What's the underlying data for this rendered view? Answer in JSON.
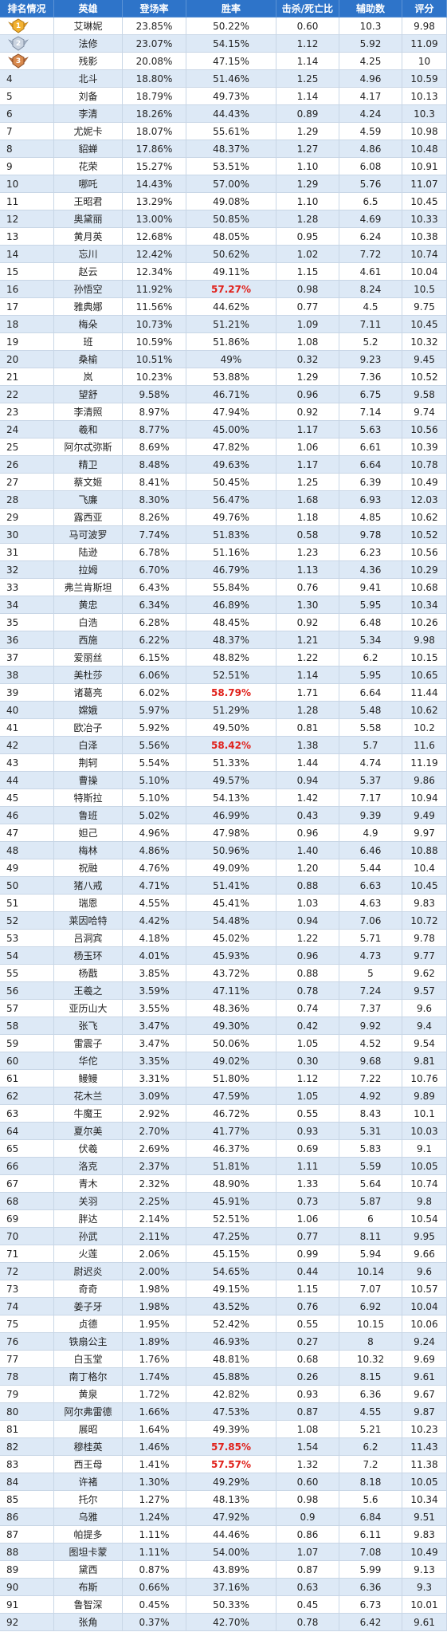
{
  "header": {
    "rank": "排名情况",
    "hero": "英雄",
    "appearance": "登场率",
    "winrate": "胜率",
    "kda": "击杀/死亡比",
    "assists": "辅助数",
    "score": "评分"
  },
  "colors": {
    "header_bg": "#2e74c9",
    "stripe": "#dde9f6",
    "highlight_red": "#e0211b",
    "gold_medal": "#f2b233",
    "silver_medal": "#a9b8cc",
    "bronze_medal": "#c0703a"
  },
  "medals": [
    "gold-medal-icon",
    "silver-medal-icon",
    "bronze-medal-icon"
  ],
  "rows": [
    {
      "rank": "1",
      "hero": "艾琳妮",
      "appearance": "23.85%",
      "winrate": "50.22%",
      "kda": "0.60",
      "assists": "10.3",
      "score": "9.98",
      "hl": false
    },
    {
      "rank": "2",
      "hero": "法修",
      "appearance": "23.07%",
      "winrate": "54.15%",
      "kda": "1.12",
      "assists": "5.92",
      "score": "11.09",
      "hl": false
    },
    {
      "rank": "3",
      "hero": "残影",
      "appearance": "20.08%",
      "winrate": "47.15%",
      "kda": "1.14",
      "assists": "4.25",
      "score": "10",
      "hl": false
    },
    {
      "rank": "4",
      "hero": "北斗",
      "appearance": "18.80%",
      "winrate": "51.46%",
      "kda": "1.25",
      "assists": "4.96",
      "score": "10.59",
      "hl": false
    },
    {
      "rank": "5",
      "hero": "刘备",
      "appearance": "18.79%",
      "winrate": "49.73%",
      "kda": "1.14",
      "assists": "4.17",
      "score": "10.13",
      "hl": false
    },
    {
      "rank": "6",
      "hero": "李清",
      "appearance": "18.26%",
      "winrate": "44.43%",
      "kda": "0.89",
      "assists": "4.24",
      "score": "10.3",
      "hl": false
    },
    {
      "rank": "7",
      "hero": "尤妮卡",
      "appearance": "18.07%",
      "winrate": "55.61%",
      "kda": "1.29",
      "assists": "4.59",
      "score": "10.98",
      "hl": false
    },
    {
      "rank": "8",
      "hero": "貂蝉",
      "appearance": "17.86%",
      "winrate": "48.37%",
      "kda": "1.27",
      "assists": "4.86",
      "score": "10.48",
      "hl": false
    },
    {
      "rank": "9",
      "hero": "花荣",
      "appearance": "15.27%",
      "winrate": "53.51%",
      "kda": "1.10",
      "assists": "6.08",
      "score": "10.91",
      "hl": false
    },
    {
      "rank": "10",
      "hero": "哪吒",
      "appearance": "14.43%",
      "winrate": "57.00%",
      "kda": "1.29",
      "assists": "5.76",
      "score": "11.07",
      "hl": false
    },
    {
      "rank": "11",
      "hero": "王昭君",
      "appearance": "13.29%",
      "winrate": "49.08%",
      "kda": "1.10",
      "assists": "6.5",
      "score": "10.45",
      "hl": false
    },
    {
      "rank": "12",
      "hero": "奥黛丽",
      "appearance": "13.00%",
      "winrate": "50.85%",
      "kda": "1.28",
      "assists": "4.69",
      "score": "10.33",
      "hl": false
    },
    {
      "rank": "13",
      "hero": "黄月英",
      "appearance": "12.68%",
      "winrate": "48.05%",
      "kda": "0.95",
      "assists": "6.24",
      "score": "10.38",
      "hl": false
    },
    {
      "rank": "14",
      "hero": "忘川",
      "appearance": "12.42%",
      "winrate": "50.62%",
      "kda": "1.02",
      "assists": "7.72",
      "score": "10.74",
      "hl": false
    },
    {
      "rank": "15",
      "hero": "赵云",
      "appearance": "12.34%",
      "winrate": "49.11%",
      "kda": "1.15",
      "assists": "4.61",
      "score": "10.04",
      "hl": false
    },
    {
      "rank": "16",
      "hero": "孙悟空",
      "appearance": "11.92%",
      "winrate": "57.27%",
      "kda": "0.98",
      "assists": "8.24",
      "score": "10.5",
      "hl": true
    },
    {
      "rank": "17",
      "hero": "雅典娜",
      "appearance": "11.56%",
      "winrate": "44.62%",
      "kda": "0.77",
      "assists": "4.5",
      "score": "9.75",
      "hl": false
    },
    {
      "rank": "18",
      "hero": "梅朵",
      "appearance": "10.73%",
      "winrate": "51.21%",
      "kda": "1.09",
      "assists": "7.11",
      "score": "10.45",
      "hl": false
    },
    {
      "rank": "19",
      "hero": "班",
      "appearance": "10.59%",
      "winrate": "51.86%",
      "kda": "1.08",
      "assists": "5.2",
      "score": "10.32",
      "hl": false
    },
    {
      "rank": "20",
      "hero": "桑榆",
      "appearance": "10.51%",
      "winrate": "49%",
      "kda": "0.32",
      "assists": "9.23",
      "score": "9.45",
      "hl": false
    },
    {
      "rank": "21",
      "hero": "岚",
      "appearance": "10.23%",
      "winrate": "53.88%",
      "kda": "1.29",
      "assists": "7.36",
      "score": "10.52",
      "hl": false
    },
    {
      "rank": "22",
      "hero": "望舒",
      "appearance": "9.58%",
      "winrate": "46.71%",
      "kda": "0.96",
      "assists": "6.75",
      "score": "9.58",
      "hl": false
    },
    {
      "rank": "23",
      "hero": "李清照",
      "appearance": "8.97%",
      "winrate": "47.94%",
      "kda": "0.92",
      "assists": "7.14",
      "score": "9.74",
      "hl": false
    },
    {
      "rank": "24",
      "hero": "羲和",
      "appearance": "8.77%",
      "winrate": "45.00%",
      "kda": "1.17",
      "assists": "5.63",
      "score": "10.56",
      "hl": false
    },
    {
      "rank": "25",
      "hero": "阿尔忒弥斯",
      "appearance": "8.69%",
      "winrate": "47.82%",
      "kda": "1.06",
      "assists": "6.61",
      "score": "10.39",
      "hl": false
    },
    {
      "rank": "26",
      "hero": "精卫",
      "appearance": "8.48%",
      "winrate": "49.63%",
      "kda": "1.17",
      "assists": "6.64",
      "score": "10.78",
      "hl": false
    },
    {
      "rank": "27",
      "hero": "蔡文姬",
      "appearance": "8.41%",
      "winrate": "50.45%",
      "kda": "1.25",
      "assists": "6.39",
      "score": "10.49",
      "hl": false
    },
    {
      "rank": "28",
      "hero": "飞廉",
      "appearance": "8.30%",
      "winrate": "56.47%",
      "kda": "1.68",
      "assists": "6.93",
      "score": "12.03",
      "hl": false
    },
    {
      "rank": "29",
      "hero": "露西亚",
      "appearance": "8.26%",
      "winrate": "49.76%",
      "kda": "1.18",
      "assists": "4.85",
      "score": "10.62",
      "hl": false
    },
    {
      "rank": "30",
      "hero": "马可波罗",
      "appearance": "7.74%",
      "winrate": "51.83%",
      "kda": "0.58",
      "assists": "9.78",
      "score": "10.52",
      "hl": false
    },
    {
      "rank": "31",
      "hero": "陆逊",
      "appearance": "6.78%",
      "winrate": "51.16%",
      "kda": "1.23",
      "assists": "6.23",
      "score": "10.56",
      "hl": false
    },
    {
      "rank": "32",
      "hero": "拉姆",
      "appearance": "6.70%",
      "winrate": "46.79%",
      "kda": "1.13",
      "assists": "4.36",
      "score": "10.29",
      "hl": false
    },
    {
      "rank": "33",
      "hero": "弗兰肯斯坦",
      "appearance": "6.43%",
      "winrate": "55.84%",
      "kda": "0.76",
      "assists": "9.41",
      "score": "10.68",
      "hl": false
    },
    {
      "rank": "34",
      "hero": "黄忠",
      "appearance": "6.34%",
      "winrate": "46.89%",
      "kda": "1.30",
      "assists": "5.95",
      "score": "10.34",
      "hl": false
    },
    {
      "rank": "35",
      "hero": "白浩",
      "appearance": "6.28%",
      "winrate": "48.45%",
      "kda": "0.92",
      "assists": "6.48",
      "score": "10.26",
      "hl": false
    },
    {
      "rank": "36",
      "hero": "西施",
      "appearance": "6.22%",
      "winrate": "48.37%",
      "kda": "1.21",
      "assists": "5.34",
      "score": "9.98",
      "hl": false
    },
    {
      "rank": "37",
      "hero": "爱丽丝",
      "appearance": "6.15%",
      "winrate": "48.82%",
      "kda": "1.22",
      "assists": "6.2",
      "score": "10.15",
      "hl": false
    },
    {
      "rank": "38",
      "hero": "美杜莎",
      "appearance": "6.06%",
      "winrate": "52.51%",
      "kda": "1.14",
      "assists": "5.95",
      "score": "10.65",
      "hl": false
    },
    {
      "rank": "39",
      "hero": "诸葛亮",
      "appearance": "6.02%",
      "winrate": "58.79%",
      "kda": "1.71",
      "assists": "6.64",
      "score": "11.44",
      "hl": true
    },
    {
      "rank": "40",
      "hero": "嫦娥",
      "appearance": "5.97%",
      "winrate": "51.29%",
      "kda": "1.28",
      "assists": "5.48",
      "score": "10.62",
      "hl": false
    },
    {
      "rank": "41",
      "hero": "欧冶子",
      "appearance": "5.92%",
      "winrate": "49.50%",
      "kda": "0.81",
      "assists": "5.58",
      "score": "10.2",
      "hl": false
    },
    {
      "rank": "42",
      "hero": "白泽",
      "appearance": "5.56%",
      "winrate": "58.42%",
      "kda": "1.38",
      "assists": "5.7",
      "score": "11.6",
      "hl": true
    },
    {
      "rank": "43",
      "hero": "荆轲",
      "appearance": "5.54%",
      "winrate": "51.33%",
      "kda": "1.44",
      "assists": "4.74",
      "score": "11.19",
      "hl": false
    },
    {
      "rank": "44",
      "hero": "曹操",
      "appearance": "5.10%",
      "winrate": "49.57%",
      "kda": "0.94",
      "assists": "5.37",
      "score": "9.86",
      "hl": false
    },
    {
      "rank": "45",
      "hero": "特斯拉",
      "appearance": "5.10%",
      "winrate": "54.13%",
      "kda": "1.42",
      "assists": "7.17",
      "score": "10.94",
      "hl": false
    },
    {
      "rank": "46",
      "hero": "鲁班",
      "appearance": "5.02%",
      "winrate": "46.99%",
      "kda": "0.43",
      "assists": "9.39",
      "score": "9.49",
      "hl": false
    },
    {
      "rank": "47",
      "hero": "妲己",
      "appearance": "4.96%",
      "winrate": "47.98%",
      "kda": "0.96",
      "assists": "4.9",
      "score": "9.97",
      "hl": false
    },
    {
      "rank": "48",
      "hero": "梅林",
      "appearance": "4.86%",
      "winrate": "50.96%",
      "kda": "1.40",
      "assists": "6.46",
      "score": "10.88",
      "hl": false
    },
    {
      "rank": "49",
      "hero": "祝融",
      "appearance": "4.76%",
      "winrate": "49.09%",
      "kda": "1.20",
      "assists": "5.44",
      "score": "10.4",
      "hl": false
    },
    {
      "rank": "50",
      "hero": "猪八戒",
      "appearance": "4.71%",
      "winrate": "51.41%",
      "kda": "0.88",
      "assists": "6.63",
      "score": "10.45",
      "hl": false
    },
    {
      "rank": "51",
      "hero": "瑞恩",
      "appearance": "4.55%",
      "winrate": "45.41%",
      "kda": "1.03",
      "assists": "4.63",
      "score": "9.83",
      "hl": false
    },
    {
      "rank": "52",
      "hero": "莱因哈特",
      "appearance": "4.42%",
      "winrate": "54.48%",
      "kda": "0.94",
      "assists": "7.06",
      "score": "10.72",
      "hl": false
    },
    {
      "rank": "53",
      "hero": "吕洞宾",
      "appearance": "4.18%",
      "winrate": "45.02%",
      "kda": "1.22",
      "assists": "5.71",
      "score": "9.78",
      "hl": false
    },
    {
      "rank": "54",
      "hero": "杨玉环",
      "appearance": "4.01%",
      "winrate": "45.93%",
      "kda": "0.96",
      "assists": "4.73",
      "score": "9.77",
      "hl": false
    },
    {
      "rank": "55",
      "hero": "杨戬",
      "appearance": "3.85%",
      "winrate": "43.72%",
      "kda": "0.88",
      "assists": "5",
      "score": "9.62",
      "hl": false
    },
    {
      "rank": "56",
      "hero": "王羲之",
      "appearance": "3.59%",
      "winrate": "47.11%",
      "kda": "0.78",
      "assists": "7.24",
      "score": "9.57",
      "hl": false
    },
    {
      "rank": "57",
      "hero": "亚历山大",
      "appearance": "3.55%",
      "winrate": "48.36%",
      "kda": "0.74",
      "assists": "7.37",
      "score": "9.6",
      "hl": false
    },
    {
      "rank": "58",
      "hero": "张飞",
      "appearance": "3.47%",
      "winrate": "49.30%",
      "kda": "0.42",
      "assists": "9.92",
      "score": "9.4",
      "hl": false
    },
    {
      "rank": "59",
      "hero": "雷震子",
      "appearance": "3.47%",
      "winrate": "50.06%",
      "kda": "1.05",
      "assists": "4.52",
      "score": "9.54",
      "hl": false
    },
    {
      "rank": "60",
      "hero": "华佗",
      "appearance": "3.35%",
      "winrate": "49.02%",
      "kda": "0.30",
      "assists": "9.68",
      "score": "9.81",
      "hl": false
    },
    {
      "rank": "61",
      "hero": "鳗鳗",
      "appearance": "3.31%",
      "winrate": "51.80%",
      "kda": "1.12",
      "assists": "7.22",
      "score": "10.76",
      "hl": false
    },
    {
      "rank": "62",
      "hero": "花木兰",
      "appearance": "3.09%",
      "winrate": "47.59%",
      "kda": "1.05",
      "assists": "4.92",
      "score": "9.89",
      "hl": false
    },
    {
      "rank": "63",
      "hero": "牛魔王",
      "appearance": "2.92%",
      "winrate": "46.72%",
      "kda": "0.55",
      "assists": "8.43",
      "score": "10.1",
      "hl": false
    },
    {
      "rank": "64",
      "hero": "夏尔美",
      "appearance": "2.70%",
      "winrate": "41.77%",
      "kda": "0.93",
      "assists": "5.31",
      "score": "10.03",
      "hl": false
    },
    {
      "rank": "65",
      "hero": "伏羲",
      "appearance": "2.69%",
      "winrate": "46.37%",
      "kda": "0.69",
      "assists": "5.83",
      "score": "9.1",
      "hl": false
    },
    {
      "rank": "66",
      "hero": "洛克",
      "appearance": "2.37%",
      "winrate": "51.81%",
      "kda": "1.11",
      "assists": "5.59",
      "score": "10.05",
      "hl": false
    },
    {
      "rank": "67",
      "hero": "青木",
      "appearance": "2.32%",
      "winrate": "48.90%",
      "kda": "1.33",
      "assists": "5.64",
      "score": "10.74",
      "hl": false
    },
    {
      "rank": "68",
      "hero": "关羽",
      "appearance": "2.25%",
      "winrate": "45.91%",
      "kda": "0.73",
      "assists": "5.87",
      "score": "9.8",
      "hl": false
    },
    {
      "rank": "69",
      "hero": "胖达",
      "appearance": "2.14%",
      "winrate": "52.51%",
      "kda": "1.06",
      "assists": "6",
      "score": "10.54",
      "hl": false
    },
    {
      "rank": "70",
      "hero": "孙武",
      "appearance": "2.11%",
      "winrate": "47.25%",
      "kda": "0.77",
      "assists": "8.11",
      "score": "9.95",
      "hl": false
    },
    {
      "rank": "71",
      "hero": "火莲",
      "appearance": "2.06%",
      "winrate": "45.15%",
      "kda": "0.99",
      "assists": "5.94",
      "score": "9.66",
      "hl": false
    },
    {
      "rank": "72",
      "hero": "尉迟炎",
      "appearance": "2.00%",
      "winrate": "54.65%",
      "kda": "0.44",
      "assists": "10.14",
      "score": "9.6",
      "hl": false
    },
    {
      "rank": "73",
      "hero": "奇奇",
      "appearance": "1.98%",
      "winrate": "49.15%",
      "kda": "1.15",
      "assists": "7.07",
      "score": "10.57",
      "hl": false
    },
    {
      "rank": "74",
      "hero": "姜子牙",
      "appearance": "1.98%",
      "winrate": "43.52%",
      "kda": "0.76",
      "assists": "6.92",
      "score": "10.04",
      "hl": false
    },
    {
      "rank": "75",
      "hero": "贞德",
      "appearance": "1.95%",
      "winrate": "52.42%",
      "kda": "0.55",
      "assists": "10.15",
      "score": "10.06",
      "hl": false
    },
    {
      "rank": "76",
      "hero": "铁扇公主",
      "appearance": "1.89%",
      "winrate": "46.93%",
      "kda": "0.27",
      "assists": "8",
      "score": "9.24",
      "hl": false
    },
    {
      "rank": "77",
      "hero": "白玉堂",
      "appearance": "1.76%",
      "winrate": "48.81%",
      "kda": "0.68",
      "assists": "10.32",
      "score": "9.69",
      "hl": false
    },
    {
      "rank": "78",
      "hero": "南丁格尔",
      "appearance": "1.74%",
      "winrate": "45.88%",
      "kda": "0.26",
      "assists": "8.15",
      "score": "9.61",
      "hl": false
    },
    {
      "rank": "79",
      "hero": "黄泉",
      "appearance": "1.72%",
      "winrate": "42.82%",
      "kda": "0.93",
      "assists": "6.36",
      "score": "9.67",
      "hl": false
    },
    {
      "rank": "80",
      "hero": "阿尔弗雷德",
      "appearance": "1.66%",
      "winrate": "47.53%",
      "kda": "0.87",
      "assists": "4.55",
      "score": "9.87",
      "hl": false
    },
    {
      "rank": "81",
      "hero": "展昭",
      "appearance": "1.64%",
      "winrate": "49.39%",
      "kda": "1.08",
      "assists": "5.21",
      "score": "10.23",
      "hl": false
    },
    {
      "rank": "82",
      "hero": "穆桂英",
      "appearance": "1.46%",
      "winrate": "57.85%",
      "kda": "1.54",
      "assists": "6.2",
      "score": "11.43",
      "hl": true
    },
    {
      "rank": "83",
      "hero": "西王母",
      "appearance": "1.41%",
      "winrate": "57.57%",
      "kda": "1.32",
      "assists": "7.2",
      "score": "11.38",
      "hl": true
    },
    {
      "rank": "84",
      "hero": "许褚",
      "appearance": "1.30%",
      "winrate": "49.29%",
      "kda": "0.60",
      "assists": "8.18",
      "score": "10.05",
      "hl": false
    },
    {
      "rank": "85",
      "hero": "托尔",
      "appearance": "1.27%",
      "winrate": "48.13%",
      "kda": "0.98",
      "assists": "5.6",
      "score": "10.34",
      "hl": false
    },
    {
      "rank": "86",
      "hero": "乌雅",
      "appearance": "1.24%",
      "winrate": "47.92%",
      "kda": "0.9",
      "assists": "6.84",
      "score": "9.51",
      "hl": false
    },
    {
      "rank": "87",
      "hero": "帕提多",
      "appearance": "1.11%",
      "winrate": "44.46%",
      "kda": "0.86",
      "assists": "6.11",
      "score": "9.83",
      "hl": false
    },
    {
      "rank": "88",
      "hero": "图坦卡蒙",
      "appearance": "1.11%",
      "winrate": "54.00%",
      "kda": "1.07",
      "assists": "7.08",
      "score": "10.49",
      "hl": false
    },
    {
      "rank": "89",
      "hero": "黛西",
      "appearance": "0.87%",
      "winrate": "43.89%",
      "kda": "0.87",
      "assists": "5.99",
      "score": "9.13",
      "hl": false
    },
    {
      "rank": "90",
      "hero": "布斯",
      "appearance": "0.66%",
      "winrate": "37.16%",
      "kda": "0.63",
      "assists": "6.36",
      "score": "9.3",
      "hl": false
    },
    {
      "rank": "91",
      "hero": "鲁智深",
      "appearance": "0.45%",
      "winrate": "50.33%",
      "kda": "0.45",
      "assists": "6.73",
      "score": "10.01",
      "hl": false
    },
    {
      "rank": "92",
      "hero": "张角",
      "appearance": "0.37%",
      "winrate": "42.70%",
      "kda": "0.78",
      "assists": "6.42",
      "score": "9.61",
      "hl": false
    }
  ]
}
